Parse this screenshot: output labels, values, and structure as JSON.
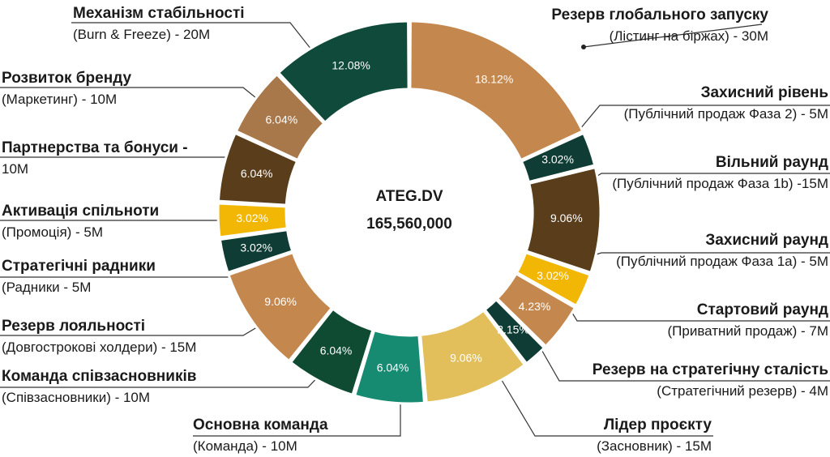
{
  "chart_data": {
    "type": "pie",
    "center": {
      "line1": "ATEG.DV",
      "line2": "165,560,000"
    },
    "slices": [
      {
        "id": "launch",
        "value": 18.12,
        "label": "18.12%",
        "color": "#c4884e",
        "title": "Резерв глобального запуску",
        "sub": "(Лістинг на біржах) - 30М"
      },
      {
        "id": "protect2",
        "value": 3.02,
        "label": "3.02%",
        "color": "#0f3d35",
        "title": "Захисний рівень",
        "sub": "(Публічний продаж Фаза 2) - 5М"
      },
      {
        "id": "free",
        "value": 9.06,
        "label": "9.06%",
        "color": "#5a3e1b",
        "title": "Вільний раунд",
        "sub": "(Публічний продаж Фаза 1b) -15М"
      },
      {
        "id": "protect1a",
        "value": 3.02,
        "label": "3.02%",
        "color": "#f2b705",
        "title": "Захисний раунд",
        "sub": "(Публічний продаж Фаза 1a) - 5М"
      },
      {
        "id": "start",
        "value": 4.23,
        "label": "4.23%",
        "color": "#c4884e",
        "title": "Стартовий раунд",
        "sub": "(Приватний продаж) - 7М"
      },
      {
        "id": "strategic",
        "value": 2.15,
        "label": "2.15%",
        "color": "#0f3d35",
        "title": "Резерв на стратегічну сталість",
        "sub": "(Стратегічний резерв) - 4М"
      },
      {
        "id": "leader",
        "value": 9.06,
        "label": "9.06%",
        "color": "#e2bf5a",
        "title": "Лідер проєкту",
        "sub": "(Засновник) - 15М"
      },
      {
        "id": "team",
        "value": 6.04,
        "label": "6.04%",
        "color": "#178a72",
        "title": "Основна команда",
        "sub": "(Команда) - 10М"
      },
      {
        "id": "cofounders",
        "value": 6.04,
        "label": "6.04%",
        "color": "#0f4a32",
        "title": "Команда співзасновників",
        "sub": "(Співзасновники) - 10М"
      },
      {
        "id": "loyalty",
        "value": 9.06,
        "label": "9.06%",
        "color": "#c4884e",
        "title": "Резерв лояльності",
        "sub": "(Довгострокові холдери) - 15М"
      },
      {
        "id": "advisors",
        "value": 3.02,
        "label": "3.02%",
        "color": "#0f3d35",
        "title": "Стратегічні радники",
        "sub": "(Радники - 5М"
      },
      {
        "id": "community",
        "value": 3.02,
        "label": "3.02%",
        "color": "#f2b705",
        "title": "Активація спільноти",
        "sub": "(Промоція) - 5М"
      },
      {
        "id": "partners",
        "value": 6.04,
        "label": "6.04%",
        "color": "#5a3e1b",
        "title": "Партнерства та бонуси -",
        "sub": "10М"
      },
      {
        "id": "brand",
        "value": 6.04,
        "label": "6.04%",
        "color": "#a8774a",
        "title": "Розвиток бренду",
        "sub": "(Маркетинг) - 10М"
      },
      {
        "id": "stability",
        "value": 12.08,
        "label": "12.08%",
        "color": "#0f4a3a",
        "title": "Механізм стабільності",
        "sub": "(Burn & Freeze) - 20М"
      }
    ]
  }
}
